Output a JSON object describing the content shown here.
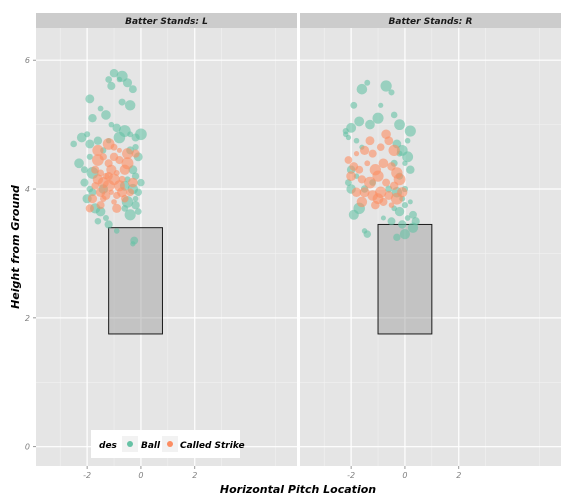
{
  "chart_data": {
    "type": "scatter",
    "colors": {
      "Ball": "#66c2a5",
      "Called Strike": "#fc8d62"
    },
    "x_label": "Horizontal Pitch Location",
    "y_label": "Height from Ground",
    "x_ticks": [
      -2,
      0,
      2
    ],
    "y_ticks": [
      0,
      2,
      4,
      6
    ],
    "xlim": [
      -3.9,
      5.8
    ],
    "ylim": [
      -0.3,
      6.5
    ],
    "legend": {
      "title": "des",
      "entries": [
        "Ball",
        "Called Strike"
      ],
      "position": "bottom-left inside"
    },
    "panels": [
      {
        "strip": "Batter Stands: L",
        "strike_zone": {
          "x_min": -1.2,
          "x_max": 0.8,
          "y_min": 1.75,
          "y_max": 3.4
        },
        "series": [
          {
            "name": "Ball",
            "points": [
              [
                -1.8,
                5.1
              ],
              [
                -1.9,
                5.4
              ],
              [
                -1.5,
                5.25
              ],
              [
                -1.2,
                5.7
              ],
              [
                -1.1,
                5.6
              ],
              [
                -1.0,
                5.8
              ],
              [
                -0.8,
                5.7
              ],
              [
                -0.7,
                5.75
              ],
              [
                -0.5,
                5.65
              ],
              [
                -0.3,
                5.55
              ],
              [
                -0.7,
                5.35
              ],
              [
                -0.4,
                5.3
              ],
              [
                -1.3,
                5.15
              ],
              [
                -1.1,
                5.0
              ],
              [
                -0.9,
                4.95
              ],
              [
                -2.5,
                4.7
              ],
              [
                -2.2,
                4.8
              ],
              [
                -2.0,
                4.85
              ],
              [
                -1.9,
                4.7
              ],
              [
                -1.6,
                4.75
              ],
              [
                -1.4,
                4.6
              ],
              [
                -1.2,
                4.75
              ],
              [
                -0.8,
                4.8
              ],
              [
                -0.6,
                4.9
              ],
              [
                -0.4,
                4.85
              ],
              [
                -0.2,
                4.8
              ],
              [
                0.0,
                4.85
              ],
              [
                -0.2,
                4.65
              ],
              [
                -0.4,
                4.6
              ],
              [
                -0.1,
                4.5
              ],
              [
                -2.3,
                4.4
              ],
              [
                -2.1,
                4.3
              ],
              [
                -1.9,
                4.5
              ],
              [
                -1.8,
                4.25
              ],
              [
                -2.1,
                4.1
              ],
              [
                -1.9,
                4.0
              ],
              [
                -0.3,
                4.3
              ],
              [
                -0.2,
                4.2
              ],
              [
                -0.5,
                4.15
              ],
              [
                -0.3,
                4.0
              ],
              [
                -0.1,
                3.95
              ],
              [
                0.0,
                4.1
              ],
              [
                -0.2,
                3.85
              ],
              [
                -0.5,
                3.8
              ],
              [
                -0.6,
                3.7
              ],
              [
                -0.4,
                3.6
              ],
              [
                -0.2,
                3.75
              ],
              [
                -0.1,
                3.65
              ],
              [
                -2.0,
                3.85
              ],
              [
                -1.8,
                3.95
              ],
              [
                -1.7,
                3.7
              ],
              [
                -1.5,
                3.65
              ],
              [
                -1.3,
                3.55
              ],
              [
                -1.6,
                3.5
              ],
              [
                -1.2,
                3.45
              ],
              [
                -0.9,
                3.35
              ],
              [
                -0.3,
                3.15
              ],
              [
                -0.25,
                3.2
              ],
              [
                -0.6,
                4.05
              ],
              [
                -1.4,
                4.0
              ]
            ]
          },
          {
            "name": "Called Strike",
            "points": [
              [
                -1.6,
                4.45
              ],
              [
                -1.4,
                4.5
              ],
              [
                -1.2,
                4.4
              ],
              [
                -1.0,
                4.5
              ],
              [
                -0.8,
                4.45
              ],
              [
                -0.5,
                4.55
              ],
              [
                -0.2,
                4.55
              ],
              [
                -1.7,
                4.3
              ],
              [
                -1.5,
                4.25
              ],
              [
                -1.3,
                4.2
              ],
              [
                -1.1,
                4.3
              ],
              [
                -0.9,
                4.25
              ],
              [
                -0.7,
                4.15
              ],
              [
                -1.6,
                4.15
              ],
              [
                -1.4,
                4.1
              ],
              [
                -1.2,
                4.05
              ],
              [
                -1.0,
                4.15
              ],
              [
                -0.8,
                4.05
              ],
              [
                -0.6,
                4.3
              ],
              [
                -1.5,
                3.95
              ],
              [
                -1.3,
                3.9
              ],
              [
                -1.1,
                3.95
              ],
              [
                -0.9,
                3.9
              ],
              [
                -1.7,
                4.05
              ],
              [
                -1.4,
                3.85
              ],
              [
                -0.4,
                3.95
              ],
              [
                -0.3,
                4.1
              ],
              [
                -0.7,
                3.95
              ],
              [
                -1.0,
                4.65
              ],
              [
                -1.2,
                4.7
              ],
              [
                -0.8,
                4.6
              ],
              [
                -0.6,
                3.85
              ],
              [
                -1.8,
                3.85
              ],
              [
                -1.5,
                3.75
              ],
              [
                -1.0,
                3.8
              ],
              [
                -0.5,
                4.4
              ],
              [
                -1.9,
                3.7
              ],
              [
                -1.6,
                4.6
              ],
              [
                -0.9,
                3.7
              ],
              [
                -1.2,
                4.2
              ]
            ]
          }
        ]
      },
      {
        "strip": "Batter Stands: R",
        "strike_zone": {
          "x_min": -1.0,
          "x_max": 1.0,
          "y_min": 1.75,
          "y_max": 3.45
        },
        "series": [
          {
            "name": "Ball",
            "points": [
              [
                -1.4,
                5.65
              ],
              [
                -1.6,
                5.55
              ],
              [
                -0.7,
                5.6
              ],
              [
                -1.9,
                5.3
              ],
              [
                -0.9,
                5.3
              ],
              [
                -0.5,
                5.5
              ],
              [
                -2.0,
                4.95
              ],
              [
                -1.7,
                5.05
              ],
              [
                -1.3,
                5.0
              ],
              [
                -1.0,
                5.1
              ],
              [
                -0.4,
                5.15
              ],
              [
                -0.2,
                5.0
              ],
              [
                -2.2,
                4.9
              ],
              [
                -2.1,
                4.8
              ],
              [
                -1.8,
                4.75
              ],
              [
                -1.6,
                4.65
              ],
              [
                -0.3,
                4.7
              ],
              [
                -0.1,
                4.6
              ],
              [
                0.1,
                4.5
              ],
              [
                -0.2,
                4.55
              ],
              [
                0.2,
                4.3
              ],
              [
                0.0,
                4.4
              ],
              [
                -0.4,
                4.4
              ],
              [
                -2.0,
                4.3
              ],
              [
                -1.8,
                4.2
              ],
              [
                -1.5,
                4.0
              ],
              [
                -1.2,
                4.1
              ],
              [
                -0.6,
                4.0
              ],
              [
                -0.3,
                3.95
              ],
              [
                -0.1,
                3.85
              ],
              [
                0.0,
                3.75
              ],
              [
                0.2,
                3.8
              ],
              [
                -0.2,
                3.65
              ],
              [
                -0.4,
                3.7
              ],
              [
                0.3,
                3.6
              ],
              [
                0.1,
                3.55
              ],
              [
                -0.1,
                3.45
              ],
              [
                -0.5,
                3.5
              ],
              [
                -0.8,
                3.55
              ],
              [
                0.3,
                3.4
              ],
              [
                0.4,
                3.5
              ],
              [
                0.0,
                3.3
              ],
              [
                -0.3,
                3.25
              ],
              [
                -1.7,
                3.7
              ],
              [
                -1.9,
                3.6
              ],
              [
                -2.0,
                4.0
              ],
              [
                -2.1,
                4.1
              ],
              [
                -1.4,
                3.3
              ],
              [
                -1.5,
                3.35
              ],
              [
                0.2,
                4.9
              ],
              [
                0.1,
                4.75
              ],
              [
                -2.2,
                4.85
              ],
              [
                0.0,
                4.0
              ],
              [
                -0.2,
                4.2
              ]
            ]
          },
          {
            "name": "Called Strike",
            "points": [
              [
                -1.8,
                4.55
              ],
              [
                -1.5,
                4.6
              ],
              [
                -1.2,
                4.55
              ],
              [
                -0.9,
                4.65
              ],
              [
                -0.6,
                4.75
              ],
              [
                -0.4,
                4.6
              ],
              [
                -1.9,
                4.35
              ],
              [
                -1.7,
                4.3
              ],
              [
                -1.4,
                4.4
              ],
              [
                -1.1,
                4.3
              ],
              [
                -0.8,
                4.4
              ],
              [
                -0.5,
                4.35
              ],
              [
                -0.3,
                4.25
              ],
              [
                -2.0,
                4.2
              ],
              [
                -1.6,
                4.15
              ],
              [
                -1.3,
                4.1
              ],
              [
                -1.0,
                4.2
              ],
              [
                -0.7,
                4.1
              ],
              [
                -0.4,
                4.05
              ],
              [
                -1.5,
                3.95
              ],
              [
                -1.2,
                3.9
              ],
              [
                -0.9,
                3.95
              ],
              [
                -0.6,
                3.9
              ],
              [
                -0.3,
                3.85
              ],
              [
                -1.8,
                3.95
              ],
              [
                -1.0,
                3.85
              ],
              [
                -0.8,
                3.8
              ],
              [
                -0.5,
                3.75
              ],
              [
                -0.2,
                4.15
              ],
              [
                -1.3,
                4.75
              ],
              [
                -0.7,
                4.85
              ],
              [
                -2.1,
                4.45
              ],
              [
                -0.1,
                3.95
              ],
              [
                -1.6,
                3.8
              ],
              [
                -1.1,
                3.75
              ]
            ]
          }
        ]
      }
    ]
  }
}
